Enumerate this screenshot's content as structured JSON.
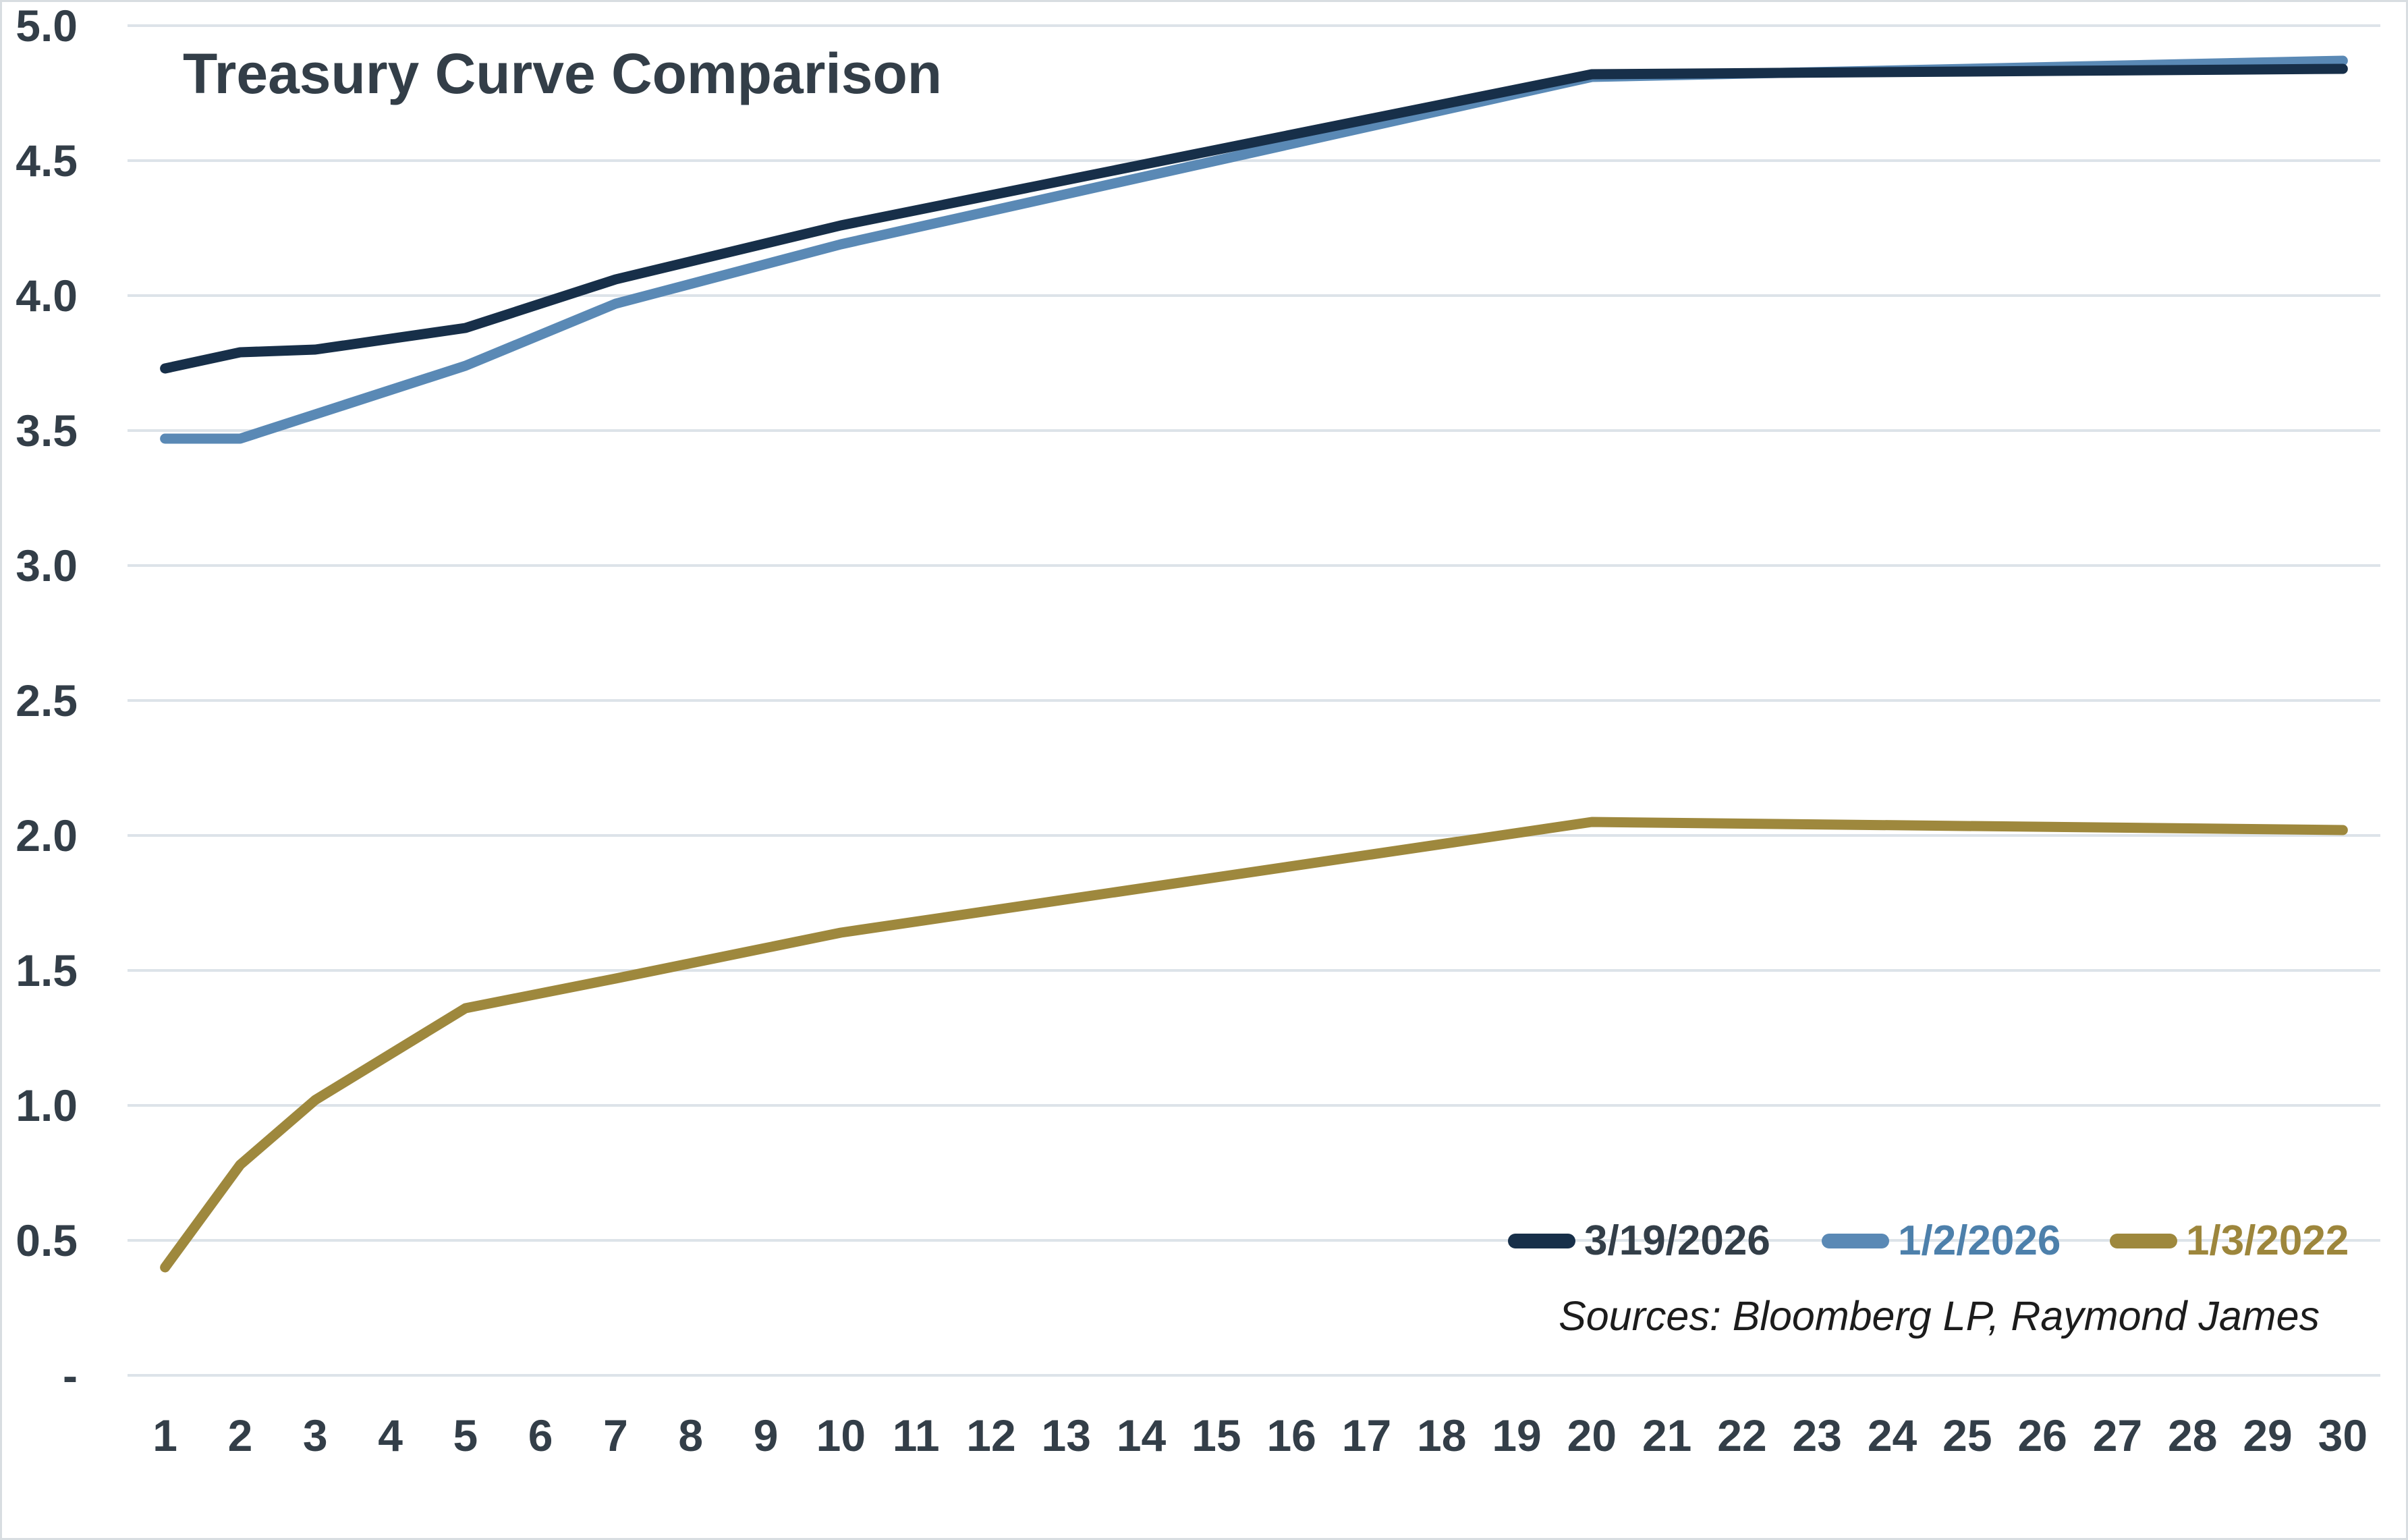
{
  "title": "Treasury Curve Comparison",
  "source_note": "Sources: Bloomberg LP, Raymond James",
  "colors": {
    "background": "#ffffff",
    "frame_border": "#d8dde1",
    "gridline": "#dde3e9",
    "axis_text": "#333e48",
    "title_text": "#333e48",
    "source_text": "#1c1c1c"
  },
  "chart_data": {
    "type": "line",
    "title": "Treasury Curve Comparison",
    "xlabel": "",
    "ylabel": "",
    "xlim": [
      1,
      30
    ],
    "ylim": [
      0,
      5
    ],
    "grid": "horizontal",
    "legend_position": "bottom-right",
    "x_ticks": [
      "1",
      "2",
      "3",
      "4",
      "5",
      "6",
      "7",
      "8",
      "9",
      "10",
      "11",
      "12",
      "13",
      "14",
      "15",
      "16",
      "17",
      "18",
      "19",
      "20",
      "21",
      "22",
      "23",
      "24",
      "25",
      "26",
      "27",
      "28",
      "29",
      "30"
    ],
    "y_ticks": [
      {
        "value": 5.0,
        "label": "5.0"
      },
      {
        "value": 4.5,
        "label": "4.5"
      },
      {
        "value": 4.0,
        "label": "4.0"
      },
      {
        "value": 3.5,
        "label": "3.5"
      },
      {
        "value": 3.0,
        "label": "3.0"
      },
      {
        "value": 2.5,
        "label": "2.5"
      },
      {
        "value": 2.0,
        "label": "2.0"
      },
      {
        "value": 1.5,
        "label": "1.5"
      },
      {
        "value": 1.0,
        "label": "1.0"
      },
      {
        "value": 0.5,
        "label": "0.5"
      },
      {
        "value": 0.0,
        "label": "-"
      }
    ],
    "x": [
      1,
      2,
      3,
      5,
      7,
      10,
      20,
      30
    ],
    "series": [
      {
        "name": "3/19/2026",
        "color": "#172f49",
        "label_color": "#333e48",
        "values": [
          3.73,
          3.79,
          3.8,
          3.88,
          4.06,
          4.26,
          4.82,
          4.84
        ]
      },
      {
        "name": "1/2/2026",
        "color": "#5a89b5",
        "label_color": "#4d80ab",
        "values": [
          3.47,
          3.47,
          3.56,
          3.74,
          3.97,
          4.19,
          4.81,
          4.87
        ]
      },
      {
        "name": "1/3/2022",
        "color": "#9e883d",
        "label_color": "#9d863c",
        "values": [
          0.4,
          0.78,
          1.02,
          1.36,
          1.47,
          1.64,
          2.05,
          2.02
        ]
      }
    ]
  }
}
